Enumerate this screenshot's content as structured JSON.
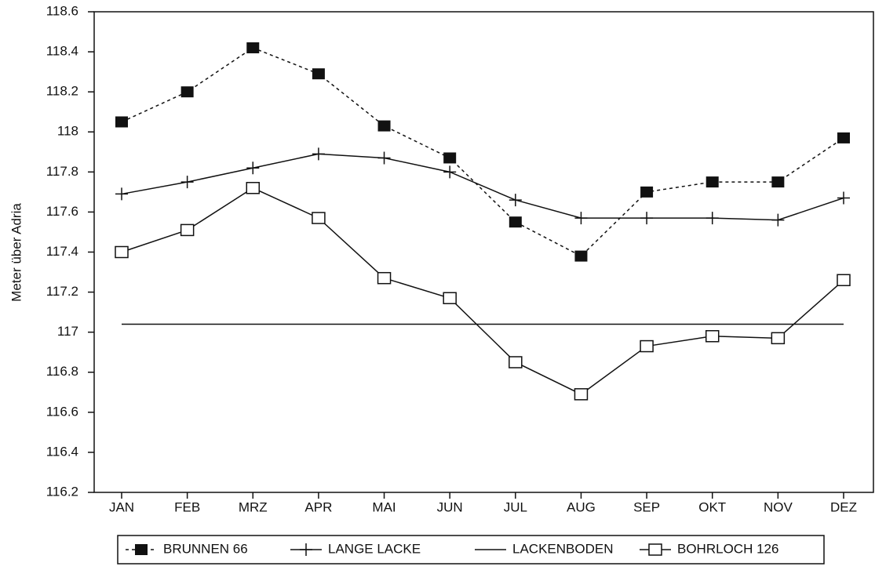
{
  "chart_data": {
    "type": "line",
    "y_label": "Meter über Adria",
    "categories": [
      "JAN",
      "FEB",
      "MRZ",
      "APR",
      "MAI",
      "JUN",
      "JUL",
      "AUG",
      "SEP",
      "OKT",
      "NOV",
      "DEZ"
    ],
    "series": [
      {
        "name": "BRUNNEN 66",
        "color": "#111111",
        "line_style": "dashed",
        "marker": "filled-square",
        "values": [
          118.05,
          118.2,
          118.42,
          118.29,
          118.03,
          117.87,
          117.55,
          117.38,
          117.7,
          117.75,
          117.75,
          117.97
        ]
      },
      {
        "name": "LANGE LACKE",
        "color": "#111111",
        "line_style": "solid",
        "marker": "plus",
        "values": [
          117.69,
          117.75,
          117.82,
          117.89,
          117.87,
          117.8,
          117.66,
          117.57,
          117.57,
          117.57,
          117.56,
          117.67
        ]
      },
      {
        "name": "LACKENBODEN",
        "color": "#111111",
        "line_style": "solid",
        "marker": "none",
        "values": [
          117.04,
          117.04,
          117.04,
          117.04,
          117.04,
          117.04,
          117.04,
          117.04,
          117.04,
          117.04,
          117.04,
          117.04
        ]
      },
      {
        "name": "BOHRLOCH 126",
        "color": "#111111",
        "line_style": "solid",
        "marker": "open-square",
        "values": [
          117.4,
          117.51,
          117.72,
          117.57,
          117.27,
          117.17,
          116.85,
          116.69,
          116.93,
          116.98,
          116.97,
          117.26
        ]
      }
    ],
    "ylim": [
      116.2,
      118.6
    ],
    "yticks": [
      116.2,
      116.4,
      116.6,
      116.8,
      117,
      117.2,
      117.4,
      117.6,
      117.8,
      118,
      118.2,
      118.4,
      118.6
    ],
    "grid": false,
    "legend": "bottom"
  }
}
